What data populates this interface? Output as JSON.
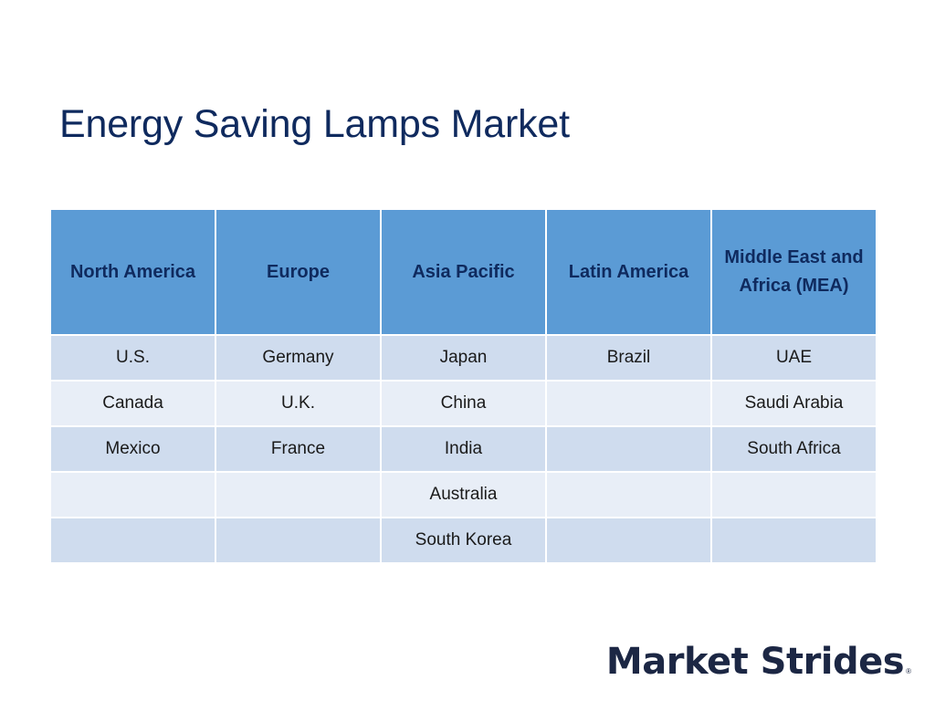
{
  "slide": {
    "title": "Energy Saving Lamps Market"
  },
  "table": {
    "headers": [
      "North America",
      "Europe",
      "Asia Pacific",
      "Latin America",
      "Middle East and Africa (MEA)"
    ],
    "rows": [
      [
        "U.S.",
        "Germany",
        "Japan",
        "Brazil",
        "UAE"
      ],
      [
        "Canada",
        "U.K.",
        "China",
        "",
        "Saudi Arabia"
      ],
      [
        "Mexico",
        "France",
        "India",
        "",
        "South Africa"
      ],
      [
        "",
        "",
        "Australia",
        "",
        ""
      ],
      [
        "",
        "",
        "South Korea",
        "",
        ""
      ]
    ]
  },
  "logo": {
    "text": "Market Strides",
    "mark": "®"
  },
  "colors": {
    "title": "#0f2a5e",
    "header_bg": "#5b9bd5",
    "row_dark": "#cfdcee",
    "row_light": "#e8eef7",
    "logo": "#1c2744"
  }
}
